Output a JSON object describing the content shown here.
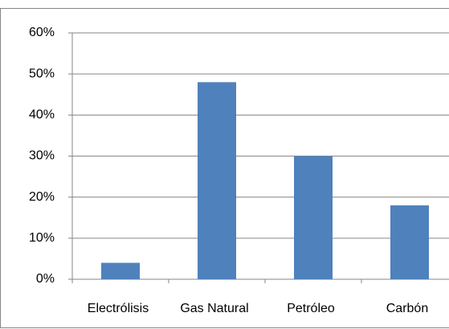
{
  "chart_data": {
    "type": "bar",
    "categories": [
      "Electrólisis",
      "Gas Natural",
      "Petróleo",
      "Carbón"
    ],
    "values": [
      4,
      48,
      30,
      18
    ],
    "color": "#4f81bd",
    "ylim": [
      0,
      60
    ],
    "yticks": [
      {
        "value": 0,
        "label": "0%"
      },
      {
        "value": 10,
        "label": "10%"
      },
      {
        "value": 20,
        "label": "20%"
      },
      {
        "value": 30,
        "label": "30%"
      },
      {
        "value": 40,
        "label": "40%"
      },
      {
        "value": 50,
        "label": "50%"
      },
      {
        "value": 60,
        "label": "60%"
      }
    ],
    "grid": true
  }
}
